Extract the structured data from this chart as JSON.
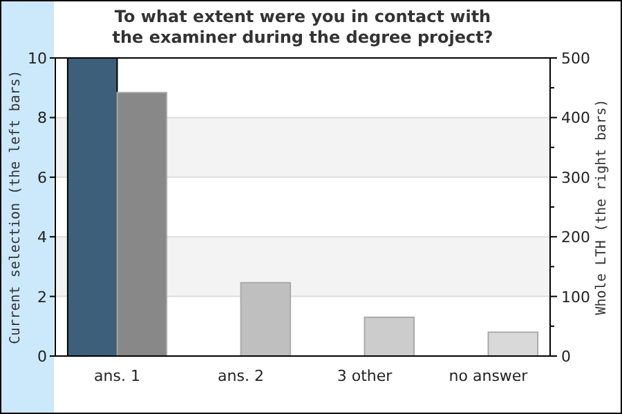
{
  "chart_data": {
    "type": "bar",
    "title": "To what extent were you in contact with\nthe examiner during the degree project?",
    "ylabel": "Current selection (the left bars)",
    "y2label": "Whole LTH (the right bars)",
    "categories": [
      "ans. 1",
      "ans. 2",
      "3 other",
      "no answer"
    ],
    "series": [
      {
        "color": "#3e5f7a",
        "values": [
          10,
          0,
          0,
          0
        ]
      },
      {
        "axis": "y2",
        "colors": [
          "#888888",
          "#bfbfbf",
          "#cccccc",
          "#d9d9d9"
        ],
        "values": [
          442,
          123,
          65,
          40
        ]
      }
    ],
    "ylim": [
      0,
      10
    ],
    "yticks": [
      0,
      2,
      4,
      6,
      8,
      10
    ],
    "y2lim": [
      0,
      500
    ],
    "y2ticks": [
      0,
      {
        "value": 50,
        "label": null
      },
      100,
      {
        "value": 150,
        "label": null
      },
      200,
      {
        "value": 250,
        "label": null
      },
      300,
      {
        "value": 350,
        "label": null
      },
      400,
      {
        "value": 450,
        "label": null
      },
      500
    ],
    "grid": "y"
  }
}
